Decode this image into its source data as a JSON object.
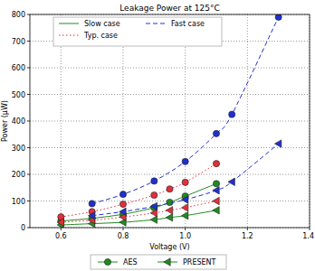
{
  "chart_data": {
    "type": "line",
    "title": "Leakage Power at 125°C",
    "x_label": "Voltage (V)",
    "y_label": "Power (μW)",
    "xlim": [
      0.5,
      1.4
    ],
    "xticks": [
      0.6,
      0.8,
      {
        "value": 1,
        "label": "1.0"
      },
      1.2,
      1.4
    ],
    "ylim": [
      0,
      800
    ],
    "yticks": [
      0,
      100,
      200,
      300,
      400,
      500,
      600,
      700,
      800
    ],
    "grid": true,
    "legend": "upper left",
    "series": [
      {
        "name": "Slow case",
        "color": "#1e8c1e",
        "line_style": "solid",
        "groups": [
          {
            "name": "AES",
            "marker": "circle",
            "x": [
              0.6,
              0.7,
              0.8,
              0.9,
              0.95,
              1.0,
              1.1
            ],
            "values": [
              25,
              35,
              50,
              75,
              95,
              118,
              165
            ]
          },
          {
            "name": "PRESENT",
            "marker": "triangle-left",
            "x": [
              0.6,
              0.7,
              0.8,
              0.9,
              0.95,
              1.0,
              1.1
            ],
            "values": [
              10,
              15,
              20,
              30,
              38,
              45,
              65
            ]
          }
        ]
      },
      {
        "name": "Typ. case",
        "color": "#e0303a",
        "line_style": "dotted",
        "groups": [
          {
            "name": "AES",
            "marker": "circle",
            "x": [
              0.6,
              0.7,
              0.8,
              0.9,
              0.95,
              1.0,
              1.1
            ],
            "values": [
              40,
              60,
              88,
              122,
              145,
              170,
              240
            ]
          },
          {
            "name": "PRESENT",
            "marker": "triangle-left",
            "x": [
              0.6,
              0.7,
              0.8,
              0.9,
              0.95,
              1.0,
              1.1
            ],
            "values": [
              20,
              28,
              40,
              55,
              65,
              75,
              100
            ]
          }
        ]
      },
      {
        "name": "Fast case",
        "color": "#2030d0",
        "line_style": "dashed",
        "groups": [
          {
            "name": "AES",
            "marker": "circle",
            "x": [
              0.7,
              0.8,
              0.9,
              1.0,
              1.1,
              1.15,
              1.3
            ],
            "values": [
              90,
              125,
              175,
              248,
              353,
              425,
              790
            ]
          },
          {
            "name": "PRESENT",
            "marker": "triangle-left",
            "x": [
              0.7,
              0.8,
              0.9,
              1.0,
              1.1,
              1.15,
              1.3
            ],
            "values": [
              45,
              60,
              80,
              105,
              140,
              172,
              315
            ]
          }
        ]
      }
    ]
  }
}
